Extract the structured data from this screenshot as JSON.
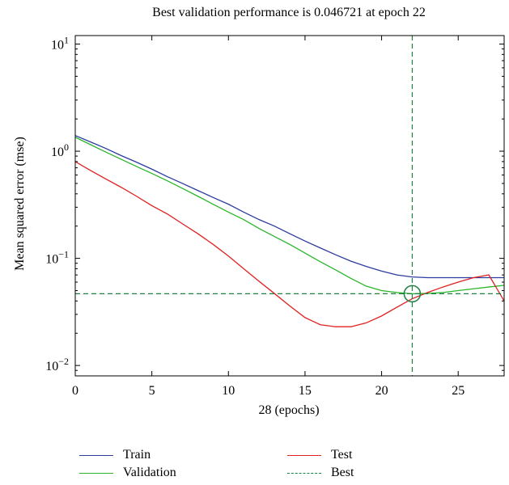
{
  "chart_data": {
    "type": "line",
    "title": "Best validation performance is 0.046721 at epoch 22",
    "xlabel": "28 (epochs)",
    "ylabel": "Mean squared error (mse)",
    "xlim": [
      0,
      28
    ],
    "ylim": [
      0.008,
      12
    ],
    "yscale": "log",
    "xticks": [
      0,
      5,
      10,
      15,
      20,
      25
    ],
    "yticks": [
      {
        "value": 0.01,
        "base": "10",
        "exp": "−2"
      },
      {
        "value": 0.1,
        "base": "10",
        "exp": "−1"
      },
      {
        "value": 1,
        "base": "10",
        "exp": "0"
      },
      {
        "value": 10,
        "base": "10",
        "exp": "1"
      }
    ],
    "grid": false,
    "legend_position": "bottom",
    "best": {
      "epoch": 22,
      "value": 0.046721
    },
    "series": [
      {
        "name": "Train",
        "color": "#2b3c9e",
        "style": "solid",
        "x": [
          0,
          1,
          2,
          3,
          4,
          5,
          6,
          7,
          8,
          9,
          10,
          11,
          12,
          13,
          14,
          15,
          16,
          17,
          18,
          19,
          20,
          21,
          22,
          23,
          24,
          25,
          26,
          27,
          28
        ],
        "y": [
          1.4,
          1.22,
          1.06,
          0.91,
          0.79,
          0.68,
          0.58,
          0.5,
          0.43,
          0.37,
          0.32,
          0.27,
          0.23,
          0.2,
          0.17,
          0.145,
          0.125,
          0.108,
          0.094,
          0.084,
          0.076,
          0.07,
          0.067,
          0.066,
          0.066,
          0.066,
          0.066,
          0.066,
          0.066
        ]
      },
      {
        "name": "Validation",
        "color": "#2ab52a",
        "style": "solid",
        "x": [
          0,
          1,
          2,
          3,
          4,
          5,
          6,
          7,
          8,
          9,
          10,
          11,
          12,
          13,
          14,
          15,
          16,
          17,
          18,
          19,
          20,
          21,
          22,
          23,
          24,
          25,
          26,
          27,
          28
        ],
        "y": [
          1.35,
          1.15,
          0.98,
          0.84,
          0.72,
          0.62,
          0.53,
          0.45,
          0.38,
          0.32,
          0.27,
          0.23,
          0.19,
          0.16,
          0.135,
          0.112,
          0.093,
          0.078,
          0.065,
          0.055,
          0.05,
          0.048,
          0.0467,
          0.047,
          0.048,
          0.05,
          0.052,
          0.054,
          0.056
        ]
      },
      {
        "name": "Test",
        "color": "#e02020",
        "style": "solid",
        "x": [
          0,
          1,
          2,
          3,
          4,
          5,
          6,
          7,
          8,
          9,
          10,
          11,
          12,
          13,
          14,
          15,
          16,
          17,
          18,
          19,
          20,
          21,
          22,
          23,
          24,
          25,
          26,
          27,
          28
        ],
        "y": [
          0.8,
          0.66,
          0.55,
          0.46,
          0.38,
          0.31,
          0.26,
          0.21,
          0.17,
          0.135,
          0.105,
          0.08,
          0.061,
          0.047,
          0.036,
          0.028,
          0.024,
          0.023,
          0.023,
          0.025,
          0.029,
          0.035,
          0.042,
          0.048,
          0.054,
          0.06,
          0.066,
          0.07,
          0.04
        ]
      },
      {
        "name": "Best",
        "color": "#1f8040",
        "style": "dashed",
        "x": [
          22
        ],
        "y": [
          0.046721
        ]
      }
    ]
  }
}
